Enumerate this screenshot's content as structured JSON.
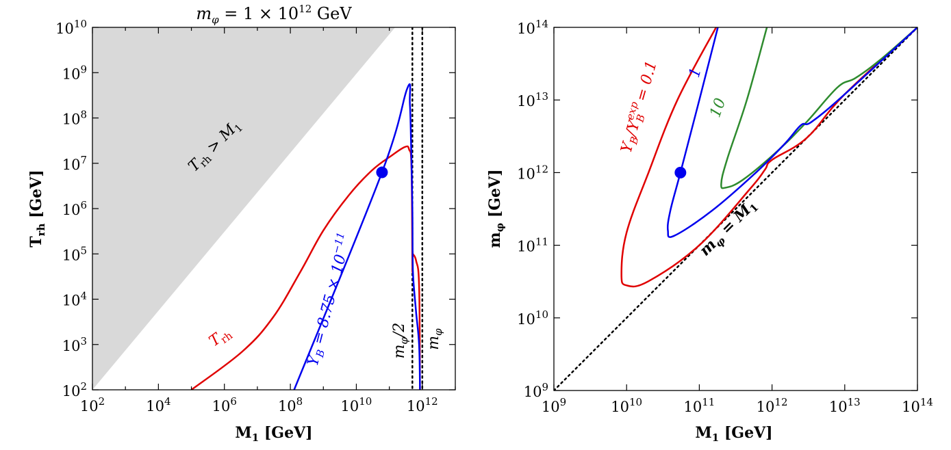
{
  "chart_data": [
    {
      "type": "line",
      "title": "m_φ = 1 × 10^12 GeV",
      "title_parts": [
        "m",
        "φ",
        " = 1 × 10",
        "12",
        " GeV"
      ],
      "xlabel": "M₁ [GeV]",
      "ylabel": "T_rh [GeV]",
      "x_scale": "log",
      "y_scale": "log",
      "xlim": [
        100,
        10000000000000.0
      ],
      "ylim": [
        100,
        10000000000.0
      ],
      "x_ticks": [
        {
          "base": "10",
          "exp": "2",
          "value": 100.0
        },
        {
          "base": "10",
          "exp": "4",
          "value": 10000.0
        },
        {
          "base": "10",
          "exp": "6",
          "value": 1000000.0
        },
        {
          "base": "10",
          "exp": "8",
          "value": 100000000.0
        },
        {
          "base": "10",
          "exp": "10",
          "value": 10000000000.0
        },
        {
          "base": "10",
          "exp": "12",
          "value": 1000000000000.0
        }
      ],
      "y_ticks": [
        {
          "base": "10",
          "exp": "2",
          "value": 100.0
        },
        {
          "base": "10",
          "exp": "3",
          "value": 1000.0
        },
        {
          "base": "10",
          "exp": "4",
          "value": 10000.0
        },
        {
          "base": "10",
          "exp": "5",
          "value": 100000.0
        },
        {
          "base": "10",
          "exp": "6",
          "value": 1000000.0
        },
        {
          "base": "10",
          "exp": "7",
          "value": 10000000.0
        },
        {
          "base": "10",
          "exp": "8",
          "value": 100000000.0
        },
        {
          "base": "10",
          "exp": "9",
          "value": 1000000000.0
        },
        {
          "base": "10",
          "exp": "10",
          "value": 10000000000.0
        }
      ],
      "shaded_region": {
        "label": "T_rh > M₁",
        "color": "#d9d9d9",
        "x": [
          100,
          150000000000.0,
          10000000000.0,
          100
        ],
        "y": [
          100,
          10000000000.0,
          10000000000.0,
          10000000000.0
        ]
      },
      "vlines": [
        {
          "x": 500000000000.0,
          "label": "m_φ/2",
          "style": "dotted"
        },
        {
          "x": 1000000000000.0,
          "label": "m_φ",
          "style": "dotted"
        }
      ],
      "series": [
        {
          "name": "Y_B = 8.75 × 10^−11",
          "color": "#0000ee",
          "x": [
            130000000.0,
            60000000000.0,
            350000000000.0,
            420000000000.0,
            460000000000.0,
            500000000000.0,
            510000000000.0,
            530000000000.0,
            650000000000.0,
            800000000000.0,
            850000000000.0
          ],
          "y": [
            100,
            6300000.0,
            450000000.0,
            200000000.0,
            20000000.0,
            1000000.0,
            100000.0,
            30000.0,
            5000.0,
            1000.0,
            100
          ]
        },
        {
          "name": "T_rh",
          "color": "#e00000",
          "x": [
            100000.0,
            3500000.0,
            30000000.0,
            200000000.0,
            1000000000.0,
            6000000000.0,
            30000000000.0,
            120000000000.0,
            300000000000.0,
            400000000000.0,
            470000000000.0,
            500000000000.0,
            500000000000.0,
            510000000000.0,
            520000000000.0,
            650000000000.0,
            800000000000.0,
            850000000000.0
          ],
          "y": [
            100,
            700,
            4000.0,
            40000.0,
            330000.0,
            2000000.0,
            7000000.0,
            15000000.0,
            23000000.0,
            20000000.0,
            8000000.0,
            50000.0,
            110000.0,
            110000.0,
            100000.0,
            70000.0,
            20000.0,
            100
          ]
        }
      ],
      "marker": {
        "x": 60000000000.0,
        "y": 6300000.0,
        "color": "#0000ee"
      },
      "labels": {
        "region": [
          "T",
          "rh",
          " > M",
          "1"
        ],
        "blue": [
          "Y",
          "B",
          " = 8.75 × 10",
          "−11"
        ],
        "red": [
          "T",
          "rh"
        ],
        "vline_half": [
          "m",
          "φ",
          "/2"
        ],
        "vline_full": [
          "m",
          "φ"
        ]
      },
      "xlabel_parts": [
        "M",
        "1",
        " [GeV]"
      ],
      "ylabel_parts": [
        "T",
        "rh",
        " [GeV]"
      ]
    },
    {
      "type": "line",
      "title": "",
      "xlabel": "M₁ [GeV]",
      "ylabel": "m_φ [GeV]",
      "x_scale": "log",
      "y_scale": "log",
      "xlim": [
        1000000000.0,
        100000000000000.0
      ],
      "ylim": [
        1000000000.0,
        100000000000000.0
      ],
      "x_ticks": [
        {
          "base": "10",
          "exp": "9",
          "value": 1000000000.0
        },
        {
          "base": "10",
          "exp": "10",
          "value": 10000000000.0
        },
        {
          "base": "10",
          "exp": "11",
          "value": 100000000000.0
        },
        {
          "base": "10",
          "exp": "12",
          "value": 1000000000000.0
        },
        {
          "base": "10",
          "exp": "13",
          "value": 10000000000000.0
        },
        {
          "base": "10",
          "exp": "14",
          "value": 100000000000000.0
        }
      ],
      "y_ticks": [
        {
          "base": "10",
          "exp": "9",
          "value": 1000000000.0
        },
        {
          "base": "10",
          "exp": "10",
          "value": 10000000000.0
        },
        {
          "base": "10",
          "exp": "11",
          "value": 100000000000.0
        },
        {
          "base": "10",
          "exp": "12",
          "value": 1000000000000.0
        },
        {
          "base": "10",
          "exp": "13",
          "value": 10000000000000.0
        },
        {
          "base": "10",
          "exp": "14",
          "value": 100000000000000.0
        }
      ],
      "diagonal": {
        "label": "m_φ = M₁",
        "x": [
          1000000000.0,
          100000000000000.0
        ],
        "y": [
          1000000000.0,
          100000000000000.0
        ],
        "style": "dotted"
      },
      "series": [
        {
          "name": "Y_B/Y_B^exp = 0.1",
          "color": "#e00000",
          "x": [
            170000000000.0,
            50000000000.0,
            20000000000.0,
            10000000000.0,
            8500000000.0,
            10000000000.0,
            20000000000.0,
            100000000000.0,
            500000000000.0,
            800000000000.0,
            1000000000000.0,
            3000000000000.0,
            10000000000000.0,
            100000000000000.0
          ],
          "y": [
            100000000000000.0,
            10000000000000.0,
            1000000000000.0,
            150000000000.0,
            40000000000.0,
            28000000000.0,
            32000000000.0,
            100000000000.0,
            600000000000.0,
            1100000000000.0,
            1500000000000.0,
            3000000000000.0,
            12000000000000.0,
            100000000000000.0
          ]
        },
        {
          "name": "Y_B/Y_B^exp = 1",
          "color": "#0000ee",
          "x": [
            180000000000.0,
            100000000000.0,
            55000000000.0,
            40000000000.0,
            37000000000.0,
            45000000000.0,
            150000000000.0,
            600000000000.0,
            1500000000000.0,
            2500000000000.0,
            3500000000000.0,
            10000000000000.0,
            100000000000000.0
          ],
          "y": [
            100000000000000.0,
            10000000000000.0,
            1000000000000.0,
            300000000000.0,
            160000000000.0,
            135000000000.0,
            300000000000.0,
            1000000000000.0,
            2500000000000.0,
            4500000000000.0,
            5000000000000.0,
            12000000000000.0,
            100000000000000.0
          ]
        },
        {
          "name": "Y_B/Y_B^exp = 10",
          "color": "#2e8b2e",
          "x": [
            850000000000.0,
            450000000000.0,
            240000000000.0,
            200000000000.0,
            230000000000.0,
            400000000000.0,
            1200000000000.0,
            3000000000000.0,
            8000000000000.0,
            14000000000000.0,
            30000000000000.0,
            100000000000000.0
          ],
          "y": [
            100000000000000.0,
            10000000000000.0,
            1500000000000.0,
            700000000000.0,
            620000000000.0,
            800000000000.0,
            2000000000000.0,
            5000000000000.0,
            15000000000000.0,
            20000000000000.0,
            35000000000000.0,
            100000000000000.0
          ]
        }
      ],
      "marker": {
        "x": 55000000000.0,
        "y": 1000000000000.0,
        "color": "#0000ee"
      },
      "labels": {
        "red": [
          "Y",
          "B",
          "/Y",
          "exp",
          "B",
          " = 0.1"
        ],
        "blue": "1",
        "green": "10",
        "diag": [
          "m",
          "φ",
          " = M",
          "1"
        ]
      },
      "xlabel_parts": [
        "M",
        "1",
        " [GeV]"
      ],
      "ylabel_parts": [
        "m",
        "φ",
        " [GeV]"
      ]
    }
  ]
}
